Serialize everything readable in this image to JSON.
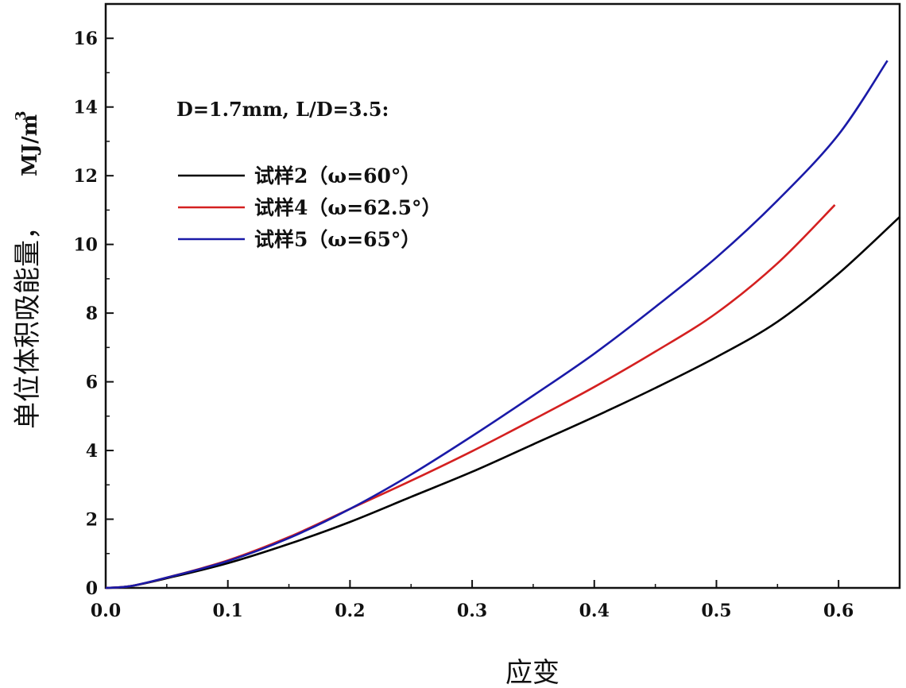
{
  "chart_data": {
    "type": "line",
    "xlabel": "应变",
    "ylabel": "单位体积吸能量，",
    "ylabel_unit": "MJ/m",
    "ylabel_unit_sup": "3",
    "annotation": "D=1.7mm, L/D=3.5:",
    "xlim": [
      0.0,
      0.65
    ],
    "ylim": [
      0,
      17
    ],
    "x_ticks": [
      "0.0",
      "0.1",
      "0.2",
      "0.3",
      "0.4",
      "0.5",
      "0.6"
    ],
    "y_ticks": [
      "0",
      "2",
      "4",
      "6",
      "8",
      "10",
      "12",
      "14",
      "16"
    ],
    "legend_position": "upper-left",
    "series": [
      {
        "name": "试样2（ω=60°）",
        "color": "#000000",
        "x": [
          0.0,
          0.02,
          0.05,
          0.1,
          0.15,
          0.2,
          0.25,
          0.3,
          0.35,
          0.4,
          0.45,
          0.5,
          0.55,
          0.6,
          0.65
        ],
        "y": [
          0.0,
          0.05,
          0.28,
          0.72,
          1.28,
          1.92,
          2.65,
          3.38,
          4.18,
          4.98,
          5.82,
          6.72,
          7.75,
          9.15,
          10.8
        ]
      },
      {
        "name": "试样4（ω=62.5°）",
        "color": "#d42020",
        "x": [
          0.0,
          0.02,
          0.05,
          0.1,
          0.15,
          0.2,
          0.25,
          0.3,
          0.35,
          0.4,
          0.45,
          0.5,
          0.55,
          0.597
        ],
        "y": [
          0.0,
          0.05,
          0.3,
          0.8,
          1.48,
          2.3,
          3.12,
          3.98,
          4.9,
          5.85,
          6.88,
          8.0,
          9.45,
          11.15
        ]
      },
      {
        "name": "试样5（ω=65°）",
        "color": "#1a1aa8",
        "x": [
          0.0,
          0.02,
          0.05,
          0.1,
          0.15,
          0.2,
          0.25,
          0.3,
          0.35,
          0.4,
          0.45,
          0.5,
          0.55,
          0.6,
          0.64
        ],
        "y": [
          0.0,
          0.05,
          0.3,
          0.78,
          1.45,
          2.3,
          3.3,
          4.42,
          5.6,
          6.82,
          8.18,
          9.62,
          11.28,
          13.2,
          15.35
        ]
      }
    ]
  }
}
